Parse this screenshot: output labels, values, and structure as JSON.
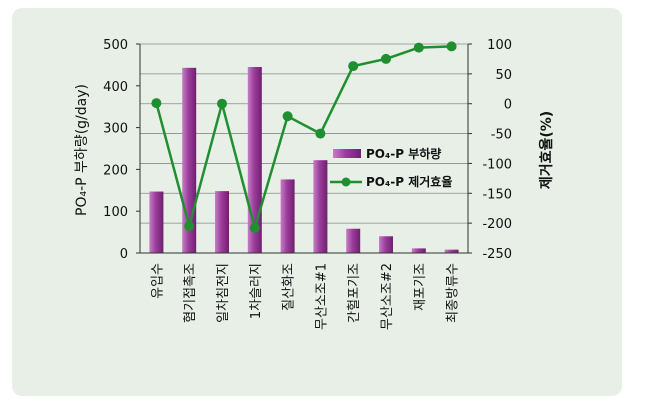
{
  "chart_data": {
    "type": "bar+line",
    "categories": [
      "유입수",
      "혐기접촉조",
      "일차침전지",
      "1차슬러지",
      "질산화조",
      "무산소조#1",
      "간헐포기조",
      "무산소조#2",
      "재포기조",
      "최종방류수"
    ],
    "ylabel_left": "PO₄-P 부하량(g/day)",
    "ylabel_right": "제거효율(%)",
    "y_left_range": [
      0,
      500
    ],
    "y_left_ticks": [
      0,
      100,
      200,
      300,
      400,
      500
    ],
    "y_right_range": [
      -250,
      100
    ],
    "y_right_ticks": [
      -250,
      -200,
      -150,
      -100,
      -50,
      0,
      50,
      100
    ],
    "legend_placement": "right",
    "series": [
      {
        "name": "PO₄-P 부하량",
        "kind": "bar",
        "axis": "left",
        "color": "#9b3d9b",
        "values": [
          147,
          443,
          148,
          445,
          176,
          222,
          58,
          40,
          11,
          8
        ]
      },
      {
        "name": "PO₄-P 제거효율",
        "kind": "line",
        "axis": "right",
        "color": "#1f8f2f",
        "values": [
          1,
          -205,
          0,
          -208,
          -21,
          -50,
          63,
          75,
          94,
          96
        ]
      }
    ]
  }
}
